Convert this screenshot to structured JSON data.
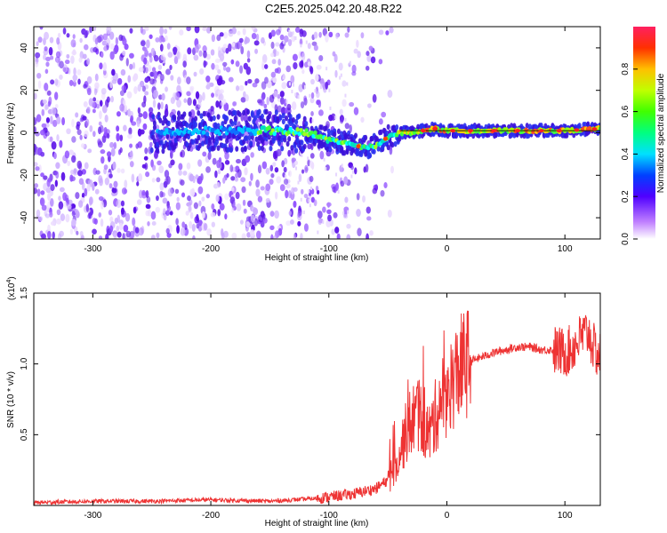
{
  "title": "C2E5.2025.042.20.48.R22",
  "chart_data": [
    {
      "type": "heatmap",
      "xlabel": "Height of straight line (km)",
      "ylabel": "Frequency (Hz)",
      "xlim": [
        -350,
        130
      ],
      "ylim": [
        -50,
        50
      ],
      "xticks": [
        -300,
        -200,
        -100,
        0,
        100
      ],
      "yticks": [
        -40,
        -20,
        0,
        20,
        40
      ],
      "colorbar": {
        "label": "Normalized spectral amplitude",
        "range": [
          0.0,
          1.0
        ],
        "ticks": [
          "0.0",
          "0.2",
          "0.4",
          "0.6",
          "0.8"
        ]
      },
      "ridge": {
        "description_points_x": [
          -240,
          -200,
          -150,
          -120,
          -100,
          -85,
          -70,
          -60,
          -50,
          -40,
          -30,
          -20,
          -10,
          0,
          50,
          100,
          130
        ],
        "description_points_y": [
          0,
          1,
          1,
          0,
          -3,
          -5,
          -7,
          -6,
          -2,
          0,
          0,
          1,
          2,
          1,
          1,
          1,
          2
        ]
      },
      "noise_region_x": [
        -350,
        -140
      ]
    },
    {
      "type": "line",
      "xlabel": "Height of straight line (km)",
      "ylabel": "SNR (10 * v/v)",
      "yscale_label": "(x10",
      "yscale_exp": "4",
      "yscale_close": ")",
      "xlim": [
        -350,
        130
      ],
      "ylim": [
        0,
        1.5
      ],
      "xticks": [
        -300,
        -200,
        -100,
        0,
        100
      ],
      "yticks": [
        "0.5",
        "1.0",
        "1.5"
      ],
      "yticks_values": [
        0.5,
        1.0,
        1.5
      ],
      "color": "#ee3333",
      "series": [
        {
          "x": [
            -350,
            -300,
            -250,
            -200,
            -150,
            -110,
            -100,
            -80,
            -60,
            -50,
            -45,
            -40,
            -35,
            -30,
            -25,
            -20,
            -15,
            -10,
            -5,
            0,
            5,
            10,
            15,
            20,
            30,
            40,
            50,
            60,
            70,
            80,
            90,
            100,
            105,
            110,
            115,
            120,
            125,
            130
          ],
          "values": [
            0.02,
            0.03,
            0.03,
            0.04,
            0.03,
            0.05,
            0.06,
            0.08,
            0.12,
            0.18,
            0.28,
            0.38,
            0.5,
            0.6,
            0.65,
            0.58,
            0.5,
            0.62,
            0.75,
            0.8,
            0.88,
            0.95,
            1.0,
            1.02,
            1.05,
            1.08,
            1.1,
            1.12,
            1.12,
            1.1,
            1.1,
            1.08,
            1.1,
            1.15,
            1.2,
            1.22,
            1.1,
            1.05
          ]
        }
      ]
    }
  ]
}
